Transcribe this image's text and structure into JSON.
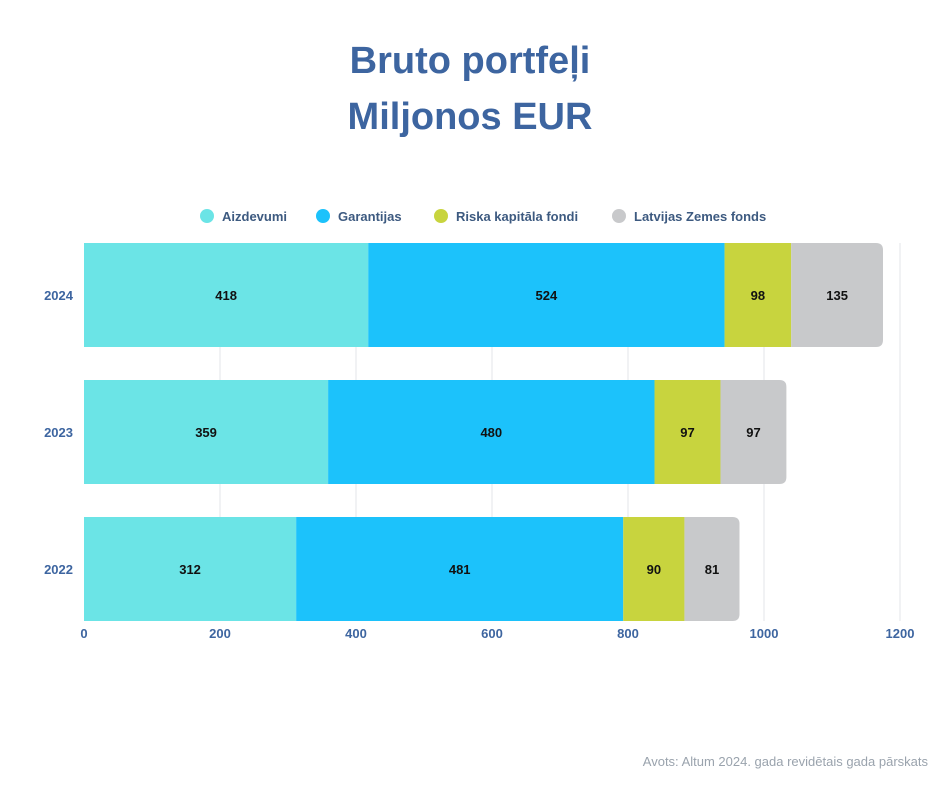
{
  "chart_data": {
    "type": "bar",
    "orientation": "horizontal",
    "stacked": true,
    "title": "Bruto portfeļi",
    "subtitle": "Miljonos EUR",
    "categories": [
      "2024",
      "2023",
      "2022"
    ],
    "series": [
      {
        "name": "Aizdevumi",
        "color": "#6be4e6",
        "values": [
          418,
          359,
          312
        ]
      },
      {
        "name": "Garantijas",
        "color": "#1cc2fb",
        "values": [
          524,
          480,
          481
        ]
      },
      {
        "name": "Riska kapitāla fondi",
        "color": "#c8d43e",
        "values": [
          98,
          97,
          90
        ]
      },
      {
        "name": "Latvijas Zemes fonds",
        "color": "#c8c9cb",
        "values": [
          135,
          97,
          81
        ]
      }
    ],
    "xlim": [
      0,
      1200
    ],
    "xticks": [
      0,
      200,
      400,
      600,
      800,
      1000,
      1200
    ],
    "grid": true,
    "legend_position": "top"
  },
  "source": "Avots: Altum 2024. gada revidētais gada pārskats",
  "colors": {
    "title": "#3d65a0",
    "axis_text": "#3d65a0",
    "gridline": "#e3e5e8",
    "bar_label": "#111111"
  }
}
